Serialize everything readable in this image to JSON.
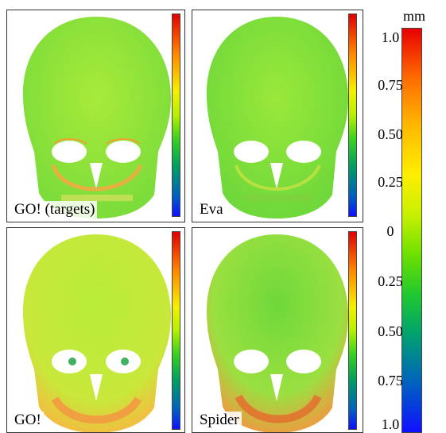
{
  "panels": [
    {
      "label": "GO! (targets)"
    },
    {
      "label": "Eva"
    },
    {
      "label": "GO!"
    },
    {
      "label": "Spider"
    }
  ],
  "colorbar": {
    "unit": "mm",
    "ticks": [
      "1.0",
      "0.75",
      "0.50",
      "0.25",
      "0",
      "0.25",
      "0.50",
      "0.75",
      "1.0"
    ]
  },
  "colors": {
    "skull_main": "#8fe63a",
    "skull_light": "#b8ec3a",
    "skull_warm": "#f0c040",
    "skull_green": "#40d040"
  }
}
